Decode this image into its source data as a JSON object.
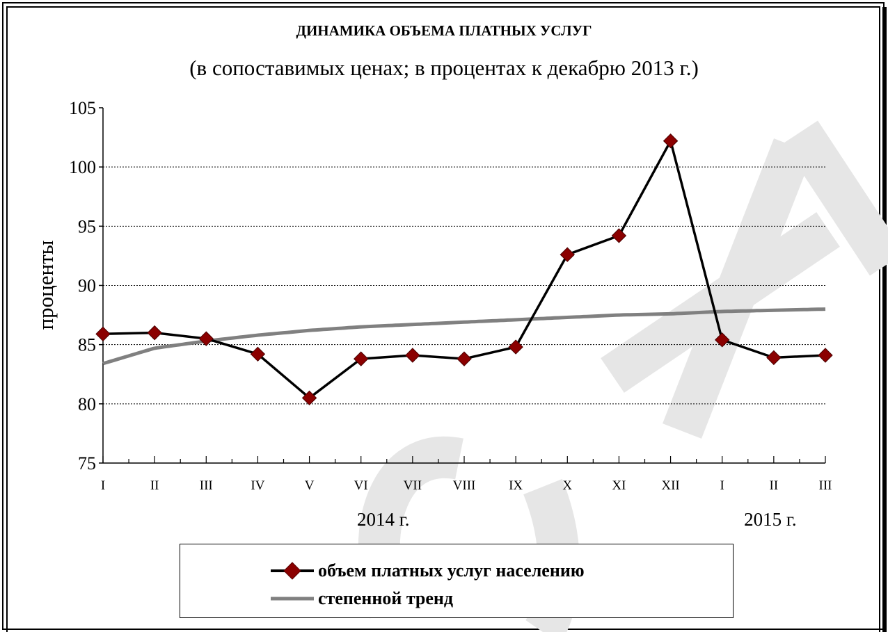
{
  "header": {
    "title": "ДИНАМИКА ОБЪЕМА ПЛАТНЫХ УСЛУГ",
    "subtitle": "(в сопоставимых ценах; в процентах к декабрю 2013 г.)"
  },
  "chart_data": {
    "type": "line",
    "title": "ДИНАМИКА ОБЪЕМА ПЛАТНЫХ УСЛУГ",
    "subtitle": "(в сопоставимых ценах; в процентах к декабрю 2013 г.)",
    "xlabel": "",
    "ylabel": "проценты",
    "ylim": [
      75,
      105
    ],
    "yticks": [
      75,
      80,
      85,
      90,
      95,
      100,
      105
    ],
    "ytick_labels": [
      "75",
      "80",
      "85",
      "90",
      "95",
      "100",
      "105"
    ],
    "grid": true,
    "categories": [
      "I",
      "II",
      "III",
      "IV",
      "V",
      "VI",
      "VII",
      "VIII",
      "IX",
      "X",
      "XI",
      "XII",
      "I",
      "II",
      "III"
    ],
    "year_labels": [
      {
        "label": "2014 г.",
        "category_index": 5.5
      },
      {
        "label": "2015 г.",
        "category_index": 13
      }
    ],
    "legend_position": "bottom",
    "series": [
      {
        "name": "объем платных услуг населению",
        "color": "#000000",
        "marker": "diamond",
        "marker_color": "#8b0000",
        "values": [
          85.9,
          86.0,
          85.5,
          84.2,
          80.5,
          83.8,
          84.1,
          83.8,
          84.8,
          92.6,
          94.2,
          102.2,
          85.4,
          83.9,
          84.1
        ]
      },
      {
        "name": "степенной тренд",
        "color": "#808080",
        "marker": "none",
        "values": [
          83.4,
          84.7,
          85.3,
          85.8,
          86.2,
          86.5,
          86.7,
          86.9,
          87.1,
          87.3,
          87.5,
          87.6,
          87.8,
          87.9,
          88.0
        ]
      }
    ]
  },
  "watermark": {
    "icon": "watermark-text-shape",
    "color": "#e6e6e6"
  }
}
